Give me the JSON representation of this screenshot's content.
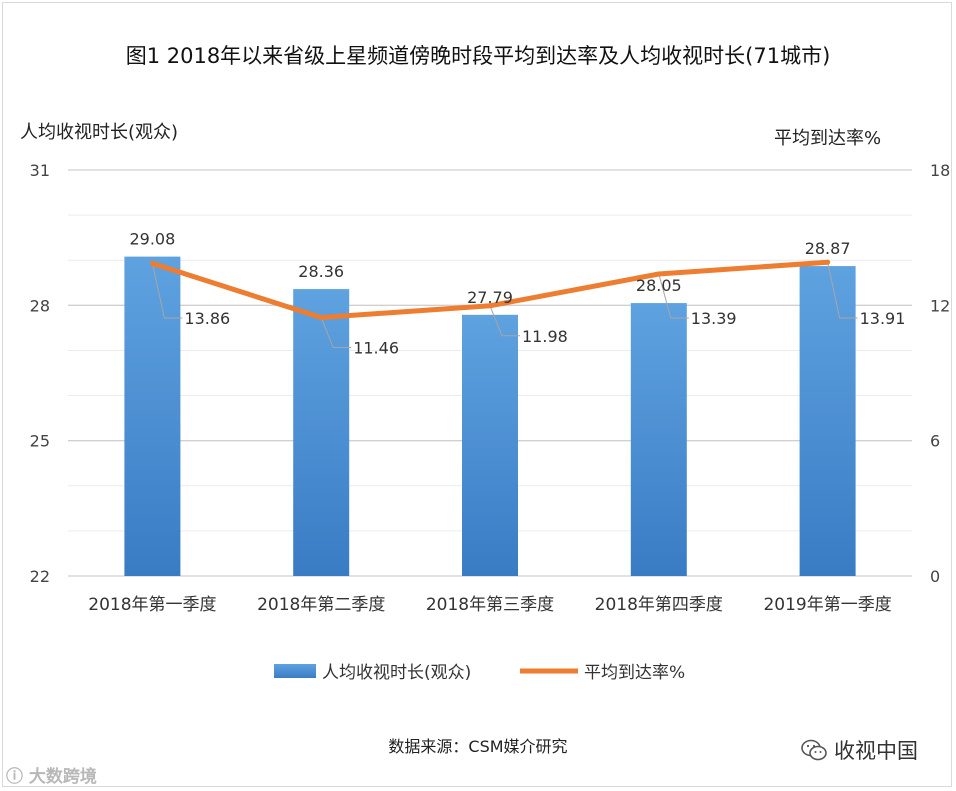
{
  "chart_data": {
    "type": "bar",
    "title": "图1 2018年以来省级上星频道傍晚时段平均到达率及人均收视时长(71城市)",
    "categories": [
      "2018年第一季度",
      "2018年第二季度",
      "2018年第三季度",
      "2018年第四季度",
      "2019年第一季度"
    ],
    "series": [
      {
        "name": "人均收视时长(观众)",
        "type": "bar",
        "axis": "left",
        "color": "#4a8fd4",
        "values": [
          29.08,
          28.36,
          27.79,
          28.05,
          28.87
        ]
      },
      {
        "name": "平均到达率%",
        "type": "line",
        "axis": "right",
        "color": "#ed7d31",
        "values": [
          13.86,
          11.46,
          11.98,
          13.39,
          13.91
        ]
      }
    ],
    "ylabel": "人均收视时长(观众)",
    "y2label": "平均到达率%",
    "ylim": [
      22,
      31
    ],
    "y2lim": [
      0,
      18
    ],
    "yticks": [
      "31",
      "28",
      "25",
      "22"
    ],
    "y2ticks": [
      "18",
      "12",
      "6",
      "0"
    ],
    "grid": true,
    "legend": "bottom"
  },
  "source": "数据来源：CSM媒介研究",
  "watermark_left": "大数跨境",
  "watermark_right": "收视中国",
  "icons": {
    "wechat": "wechat-icon"
  }
}
